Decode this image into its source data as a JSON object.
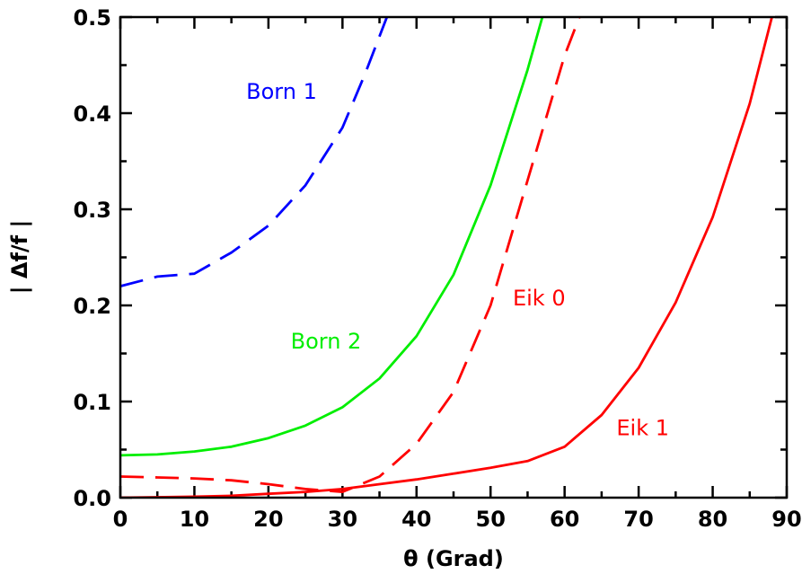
{
  "chart_data": {
    "type": "line",
    "xlabel": "θ (Grad)",
    "ylabel": "| Δf/f |",
    "xlim": [
      0,
      90
    ],
    "ylim": [
      0,
      0.5
    ],
    "xticks": [
      "0",
      "10",
      "20",
      "30",
      "40",
      "50",
      "60",
      "70",
      "80",
      "90"
    ],
    "yticks": [
      "0.0",
      "0.1",
      "0.2",
      "0.3",
      "0.4",
      "0.5"
    ],
    "grid": false,
    "series": [
      {
        "name": "Born 1",
        "color": "#0000ff",
        "dashed": true,
        "x": [
          0,
          5,
          10,
          15,
          20,
          25,
          30,
          33,
          36
        ],
        "y": [
          0.22,
          0.23,
          0.233,
          0.255,
          0.283,
          0.325,
          0.385,
          0.44,
          0.5
        ]
      },
      {
        "name": "Born 2",
        "color": "#00ee00",
        "dashed": false,
        "x": [
          0,
          5,
          10,
          15,
          20,
          25,
          30,
          35,
          40,
          45,
          50,
          55,
          57
        ],
        "y": [
          0.044,
          0.045,
          0.048,
          0.053,
          0.062,
          0.075,
          0.094,
          0.124,
          0.168,
          0.232,
          0.325,
          0.445,
          0.5
        ]
      },
      {
        "name": "Eik 0",
        "color": "#ff0000",
        "dashed": true,
        "x": [
          0,
          5,
          10,
          15,
          20,
          25,
          30,
          35,
          40,
          45,
          50,
          55,
          60,
          62
        ],
        "y": [
          0.022,
          0.021,
          0.02,
          0.018,
          0.014,
          0.009,
          0.006,
          0.022,
          0.056,
          0.11,
          0.2,
          0.33,
          0.46,
          0.5
        ]
      },
      {
        "name": "Eik 1",
        "color": "#ff0000",
        "dashed": false,
        "x": [
          0,
          5,
          10,
          15,
          20,
          25,
          30,
          35,
          40,
          45,
          50,
          55,
          60,
          65,
          70,
          75,
          80,
          85,
          88
        ],
        "y": [
          0.0,
          0.0005,
          0.001,
          0.002,
          0.004,
          0.006,
          0.009,
          0.014,
          0.019,
          0.025,
          0.031,
          0.038,
          0.053,
          0.086,
          0.135,
          0.203,
          0.292,
          0.41,
          0.5
        ]
      }
    ],
    "labels": [
      {
        "text": "Born 1",
        "x": 17,
        "y": 0.415,
        "color": "#0000ff"
      },
      {
        "text": "Born 2",
        "x": 23,
        "y": 0.155,
        "color": "#00ee00"
      },
      {
        "text": "Eik 0",
        "x": 53,
        "y": 0.2,
        "color": "#ff0000"
      },
      {
        "text": "Eik 1",
        "x": 67,
        "y": 0.065,
        "color": "#ff0000"
      }
    ]
  }
}
